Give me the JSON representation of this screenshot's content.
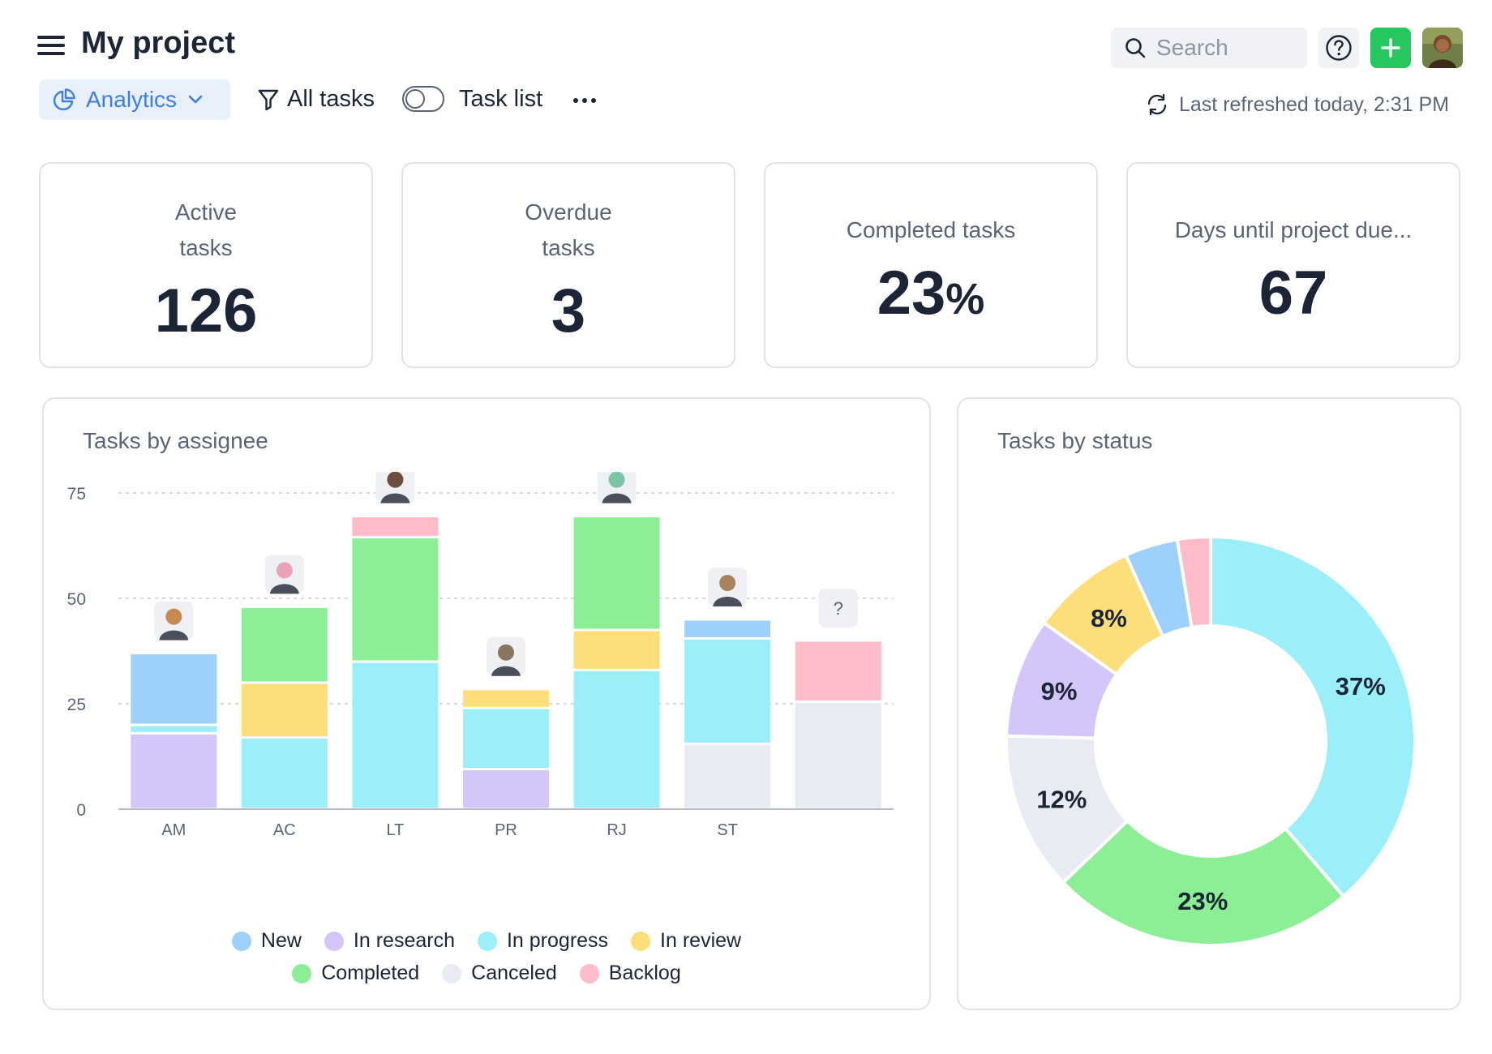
{
  "header": {
    "title": "My project",
    "analytics_label": "Analytics",
    "all_tasks_label": "All tasks",
    "task_list_label": "Task list",
    "search_placeholder": "Search",
    "refreshed_label": "Last refreshed today, 2:31 PM",
    "accent_color": "#3f7de3",
    "add_color": "#27c75f"
  },
  "kpis": [
    {
      "label_lines": [
        "Active",
        "tasks"
      ],
      "value": "126",
      "unit": ""
    },
    {
      "label_lines": [
        "Overdue",
        "tasks"
      ],
      "value": "3",
      "unit": ""
    },
    {
      "label_lines": [
        "Completed tasks"
      ],
      "value": "23",
      "unit": "%"
    },
    {
      "label_lines": [
        "Days until project due..."
      ],
      "value": "67",
      "unit": ""
    }
  ],
  "chart_data": [
    {
      "type": "bar",
      "stacked": true,
      "title": "Tasks by assignee",
      "categories": [
        "AM",
        "AC",
        "LT",
        "PR",
        "RJ",
        "ST",
        ""
      ],
      "unassigned_marker": "?",
      "ylim": [
        0,
        75
      ],
      "yticks": [
        0,
        25,
        50,
        75
      ],
      "grid": "dashed",
      "legend_placement": "bottom",
      "series": [
        {
          "name": "In research",
          "color": "#d4c5fb",
          "values": [
            18,
            0,
            0,
            9.5,
            0,
            0,
            0
          ]
        },
        {
          "name": "Canceled",
          "color": "#e8ebf1",
          "values": [
            0,
            0,
            0,
            0,
            0,
            15.5,
            25.5
          ]
        },
        {
          "name": "In progress",
          "color": "#9aeffa",
          "values": [
            2,
            17,
            35,
            14.5,
            33,
            25,
            0
          ]
        },
        {
          "name": "In review",
          "color": "#fdde7a",
          "values": [
            0,
            13,
            0,
            4.5,
            9.5,
            0,
            0
          ]
        },
        {
          "name": "Completed",
          "color": "#8cef96",
          "values": [
            0,
            18,
            29.5,
            0,
            27,
            0,
            0
          ]
        },
        {
          "name": "New",
          "color": "#9dd0fb",
          "values": [
            17,
            0,
            0,
            0,
            0,
            4.5,
            0
          ]
        },
        {
          "name": "Backlog",
          "color": "#fdbcc8",
          "values": [
            0,
            0,
            5,
            0,
            0,
            0,
            14.5
          ]
        }
      ]
    },
    {
      "type": "pie",
      "donut": true,
      "title": "Tasks by status",
      "slices": [
        {
          "name": "In progress",
          "value": 37,
          "label": "37%",
          "color": "#9aeffa"
        },
        {
          "name": "Completed",
          "value": 23,
          "label": "23%",
          "color": "#8cef96"
        },
        {
          "name": "Canceled",
          "value": 12,
          "label": "12%",
          "color": "#e8ebf1"
        },
        {
          "name": "In research",
          "value": 9,
          "label": "9%",
          "color": "#d4c5fb"
        },
        {
          "name": "In review",
          "value": 8,
          "label": "8%",
          "color": "#fdde7a"
        },
        {
          "name": "New",
          "value": 4,
          "label": "",
          "color": "#9dd0fb"
        },
        {
          "name": "Backlog",
          "value": 2.5,
          "label": "",
          "color": "#fdbcc8"
        }
      ]
    }
  ],
  "legend": {
    "row1": [
      {
        "name": "New",
        "color": "#9dd0fb"
      },
      {
        "name": "In research",
        "color": "#d4c5fb"
      },
      {
        "name": "In progress",
        "color": "#9aeffa"
      },
      {
        "name": "In review",
        "color": "#fdde7a"
      }
    ],
    "row2": [
      {
        "name": "Completed",
        "color": "#8cef96"
      },
      {
        "name": "Canceled",
        "color": "#e8ebf1"
      },
      {
        "name": "Backlog",
        "color": "#fdbcc8"
      }
    ]
  }
}
